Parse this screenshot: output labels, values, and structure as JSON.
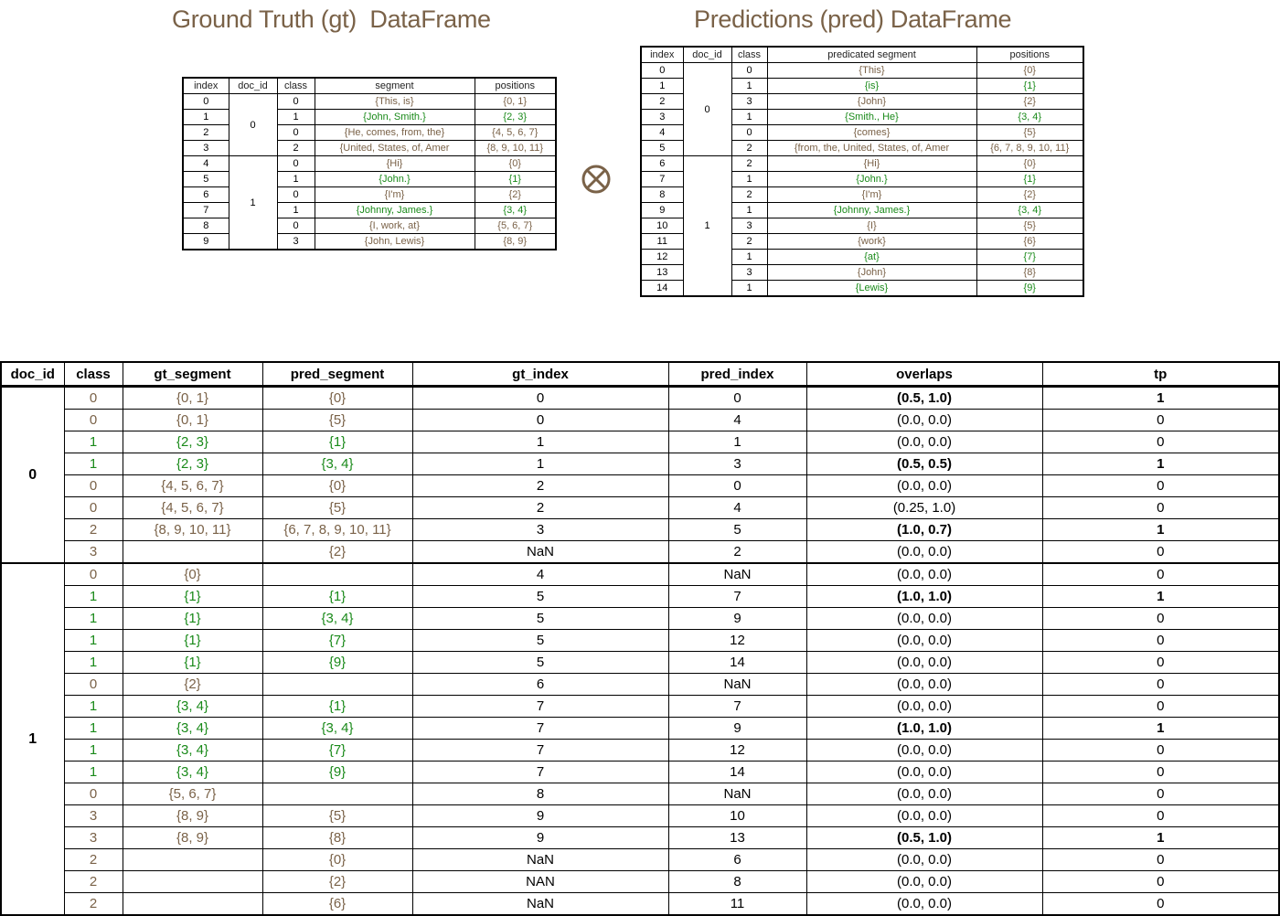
{
  "gt": {
    "title": "Ground Truth (gt)  DataFrame",
    "headers": [
      "index",
      "doc_id",
      "class",
      "segment",
      "positions"
    ],
    "rows": [
      {
        "index": "0",
        "doc_id": "0",
        "class": "0",
        "segment": "{This, is}",
        "positions": "{0, 1}",
        "color": "brown"
      },
      {
        "index": "1",
        "doc_id": "",
        "class": "1",
        "segment": "{John, Smith.}",
        "positions": "{2, 3}",
        "color": "green"
      },
      {
        "index": "2",
        "doc_id": "",
        "class": "0",
        "segment": "{He, comes, from, the}",
        "positions": "{4, 5, 6, 7}",
        "color": "brown"
      },
      {
        "index": "3",
        "doc_id": "",
        "class": "2",
        "segment": "{United, States, of, Amer",
        "positions": "{8, 9, 10, 11}",
        "color": "brown"
      },
      {
        "index": "4",
        "doc_id": "1",
        "class": "0",
        "segment": "{Hi}",
        "positions": "{0}",
        "color": "brown"
      },
      {
        "index": "5",
        "doc_id": "",
        "class": "1",
        "segment": "{John.}",
        "positions": "{1}",
        "color": "green"
      },
      {
        "index": "6",
        "doc_id": "",
        "class": "0",
        "segment": "{I'm}",
        "positions": "{2}",
        "color": "brown"
      },
      {
        "index": "7",
        "doc_id": "",
        "class": "1",
        "segment": "{Johnny, James.}",
        "positions": "{3, 4}",
        "color": "green"
      },
      {
        "index": "8",
        "doc_id": "",
        "class": "0",
        "segment": "{I, work, at}",
        "positions": "{5, 6, 7}",
        "color": "brown"
      },
      {
        "index": "9",
        "doc_id": "",
        "class": "3",
        "segment": "{John, Lewis}",
        "positions": "{8, 9}",
        "color": "brown"
      }
    ]
  },
  "pred": {
    "title": "Predictions (pred) DataFrame",
    "headers": [
      "index",
      "doc_id",
      "class",
      "predicated segment",
      "positions"
    ],
    "rows": [
      {
        "index": "0",
        "doc_id": "0",
        "class": "0",
        "segment": "{This}",
        "positions": "{0}",
        "color": "brown"
      },
      {
        "index": "1",
        "doc_id": "",
        "class": "1",
        "segment": "{is}",
        "positions": "{1}",
        "color": "green"
      },
      {
        "index": "2",
        "doc_id": "",
        "class": "3",
        "segment": "{John}",
        "positions": "{2}",
        "color": "brown"
      },
      {
        "index": "3",
        "doc_id": "",
        "class": "1",
        "segment": "{Smith., He}",
        "positions": "{3, 4}",
        "color": "green"
      },
      {
        "index": "4",
        "doc_id": "",
        "class": "0",
        "segment": "{comes}",
        "positions": "{5}",
        "color": "brown"
      },
      {
        "index": "5",
        "doc_id": "",
        "class": "2",
        "segment": "{from, the, United, States, of, Amer",
        "positions": "{6, 7, 8, 9, 10, 11}",
        "color": "brown"
      },
      {
        "index": "6",
        "doc_id": "1",
        "class": "2",
        "segment": "{Hi}",
        "positions": "{0}",
        "color": "brown"
      },
      {
        "index": "7",
        "doc_id": "",
        "class": "1",
        "segment": "{John.}",
        "positions": "{1}",
        "color": "green"
      },
      {
        "index": "8",
        "doc_id": "",
        "class": "2",
        "segment": "{I'm}",
        "positions": "{2}",
        "color": "brown"
      },
      {
        "index": "9",
        "doc_id": "",
        "class": "1",
        "segment": "{Johnny, James.}",
        "positions": "{3, 4}",
        "color": "green"
      },
      {
        "index": "10",
        "doc_id": "",
        "class": "3",
        "segment": "{I}",
        "positions": "{5}",
        "color": "brown"
      },
      {
        "index": "11",
        "doc_id": "",
        "class": "2",
        "segment": "{work}",
        "positions": "{6}",
        "color": "brown"
      },
      {
        "index": "12",
        "doc_id": "",
        "class": "1",
        "segment": "{at}",
        "positions": "{7}",
        "color": "green"
      },
      {
        "index": "13",
        "doc_id": "",
        "class": "3",
        "segment": "{John}",
        "positions": "{8}",
        "color": "brown"
      },
      {
        "index": "14",
        "doc_id": "",
        "class": "1",
        "segment": "{Lewis}",
        "positions": "{9}",
        "color": "green"
      }
    ]
  },
  "operator_icon": "circled-times-icon",
  "merge": {
    "headers": [
      "doc_id",
      "class",
      "gt_segment",
      "pred_segment",
      "gt_index",
      "pred_index",
      "overlaps",
      "tp"
    ],
    "doc_labels": [
      "0",
      "1"
    ],
    "rows": [
      {
        "doc_id": "0",
        "class": "0",
        "gt_segment": "{0, 1}",
        "pred_segment": "{0}",
        "gt_index": "0",
        "pred_index": "0",
        "overlaps": "(0.5, 1.0)",
        "tp": "1",
        "color": "brown",
        "bold": true
      },
      {
        "doc_id": "0",
        "class": "0",
        "gt_segment": "{0, 1}",
        "pred_segment": "{5}",
        "gt_index": "0",
        "pred_index": "4",
        "overlaps": "(0.0, 0.0)",
        "tp": "0",
        "color": "brown",
        "bold": false
      },
      {
        "doc_id": "0",
        "class": "1",
        "gt_segment": "{2, 3}",
        "pred_segment": "{1}",
        "gt_index": "1",
        "pred_index": "1",
        "overlaps": "(0.0, 0.0)",
        "tp": "0",
        "color": "green",
        "bold": false
      },
      {
        "doc_id": "0",
        "class": "1",
        "gt_segment": "{2, 3}",
        "pred_segment": "{3, 4}",
        "gt_index": "1",
        "pred_index": "3",
        "overlaps": "(0.5, 0.5)",
        "tp": "1",
        "color": "green",
        "bold": true
      },
      {
        "doc_id": "0",
        "class": "0",
        "gt_segment": "{4, 5, 6, 7}",
        "pred_segment": "{0}",
        "gt_index": "2",
        "pred_index": "0",
        "overlaps": "(0.0, 0.0)",
        "tp": "0",
        "color": "brown",
        "bold": false
      },
      {
        "doc_id": "0",
        "class": "0",
        "gt_segment": "{4, 5, 6, 7}",
        "pred_segment": "{5}",
        "gt_index": "2",
        "pred_index": "4",
        "overlaps": "(0.25, 1.0)",
        "tp": "0",
        "color": "brown",
        "bold": false
      },
      {
        "doc_id": "0",
        "class": "2",
        "gt_segment": "{8, 9, 10, 11}",
        "pred_segment": "{6, 7, 8, 9, 10, 11}",
        "gt_index": "3",
        "pred_index": "5",
        "overlaps": "(1.0, 0.7)",
        "tp": "1",
        "color": "brown",
        "bold": true
      },
      {
        "doc_id": "0",
        "class": "3",
        "gt_segment": "",
        "pred_segment": "{2}",
        "gt_index": "NaN",
        "pred_index": "2",
        "overlaps": "(0.0, 0.0)",
        "tp": "0",
        "color": "brown",
        "bold": false
      },
      {
        "doc_id": "1",
        "class": "0",
        "gt_segment": "{0}",
        "pred_segment": "",
        "gt_index": "4",
        "pred_index": "NaN",
        "overlaps": "(0.0, 0.0)",
        "tp": "0",
        "color": "brown",
        "bold": false
      },
      {
        "doc_id": "1",
        "class": "1",
        "gt_segment": "{1}",
        "pred_segment": "{1}",
        "gt_index": "5",
        "pred_index": "7",
        "overlaps": "(1.0, 1.0)",
        "tp": "1",
        "color": "green",
        "bold": true
      },
      {
        "doc_id": "1",
        "class": "1",
        "gt_segment": "{1}",
        "pred_segment": "{3, 4}",
        "gt_index": "5",
        "pred_index": "9",
        "overlaps": "(0.0, 0.0)",
        "tp": "0",
        "color": "green",
        "bold": false
      },
      {
        "doc_id": "1",
        "class": "1",
        "gt_segment": "{1}",
        "pred_segment": "{7}",
        "gt_index": "5",
        "pred_index": "12",
        "overlaps": "(0.0, 0.0)",
        "tp": "0",
        "color": "green",
        "bold": false
      },
      {
        "doc_id": "1",
        "class": "1",
        "gt_segment": "{1}",
        "pred_segment": "{9}",
        "gt_index": "5",
        "pred_index": "14",
        "overlaps": "(0.0, 0.0)",
        "tp": "0",
        "color": "green",
        "bold": false
      },
      {
        "doc_id": "1",
        "class": "0",
        "gt_segment": "{2}",
        "pred_segment": "",
        "gt_index": "6",
        "pred_index": "NaN",
        "overlaps": "(0.0, 0.0)",
        "tp": "0",
        "color": "brown",
        "bold": false
      },
      {
        "doc_id": "1",
        "class": "1",
        "gt_segment": "{3, 4}",
        "pred_segment": "{1}",
        "gt_index": "7",
        "pred_index": "7",
        "overlaps": "(0.0, 0.0)",
        "tp": "0",
        "color": "green",
        "bold": false
      },
      {
        "doc_id": "1",
        "class": "1",
        "gt_segment": "{3, 4}",
        "pred_segment": "{3, 4}",
        "gt_index": "7",
        "pred_index": "9",
        "overlaps": "(1.0, 1.0)",
        "tp": "1",
        "color": "green",
        "bold": true
      },
      {
        "doc_id": "1",
        "class": "1",
        "gt_segment": "{3, 4}",
        "pred_segment": "{7}",
        "gt_index": "7",
        "pred_index": "12",
        "overlaps": "(0.0, 0.0)",
        "tp": "0",
        "color": "green",
        "bold": false
      },
      {
        "doc_id": "1",
        "class": "1",
        "gt_segment": "{3, 4}",
        "pred_segment": "{9}",
        "gt_index": "7",
        "pred_index": "14",
        "overlaps": "(0.0, 0.0)",
        "tp": "0",
        "color": "green",
        "bold": false
      },
      {
        "doc_id": "1",
        "class": "0",
        "gt_segment": "{5, 6, 7}",
        "pred_segment": "",
        "gt_index": "8",
        "pred_index": "NaN",
        "overlaps": "(0.0, 0.0)",
        "tp": "0",
        "color": "brown",
        "bold": false
      },
      {
        "doc_id": "1",
        "class": "3",
        "gt_segment": "{8, 9}",
        "pred_segment": "{5}",
        "gt_index": "9",
        "pred_index": "10",
        "overlaps": "(0.0, 0.0)",
        "tp": "0",
        "color": "brown",
        "bold": false
      },
      {
        "doc_id": "1",
        "class": "3",
        "gt_segment": "{8, 9}",
        "pred_segment": "{8}",
        "gt_index": "9",
        "pred_index": "13",
        "overlaps": "(0.5, 1.0)",
        "tp": "1",
        "color": "brown",
        "bold": true
      },
      {
        "doc_id": "1",
        "class": "2",
        "gt_segment": "",
        "pred_segment": "{0}",
        "gt_index": "NaN",
        "pred_index": "6",
        "overlaps": "(0.0, 0.0)",
        "tp": "0",
        "color": "brown",
        "bold": false
      },
      {
        "doc_id": "1",
        "class": "2",
        "gt_segment": "",
        "pred_segment": "{2}",
        "gt_index": "NAN",
        "pred_index": "8",
        "overlaps": "(0.0, 0.0)",
        "tp": "0",
        "color": "brown",
        "bold": false
      },
      {
        "doc_id": "1",
        "class": "2",
        "gt_segment": "",
        "pred_segment": "{6}",
        "gt_index": "NaN",
        "pred_index": "11",
        "overlaps": "(0.0, 0.0)",
        "tp": "0",
        "color": "brown",
        "bold": false
      }
    ]
  },
  "colors": {
    "brown": "#7a6248",
    "green": "#1a8a1a",
    "title": "#7a6248"
  }
}
